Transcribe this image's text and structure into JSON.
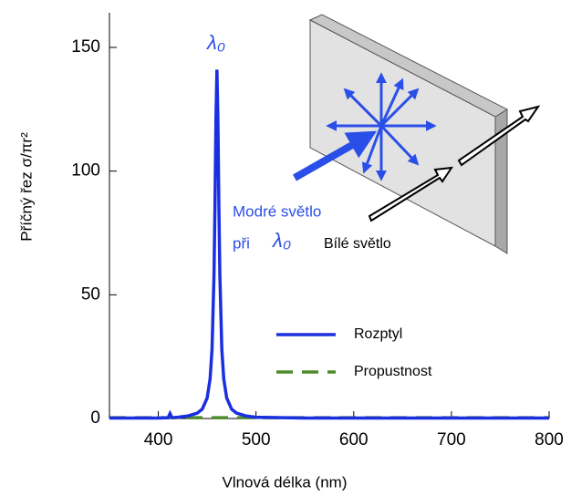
{
  "chart_data": {
    "type": "line",
    "x_label": "Vlnová délka (nm)",
    "y_label": "Příčný řez σ/πr²",
    "xlim": [
      350,
      800
    ],
    "xticks": [
      400,
      500,
      600,
      700,
      800
    ],
    "ylim": [
      0,
      164
    ],
    "yticks": [
      0,
      50,
      100,
      150
    ],
    "x": [
      350,
      380,
      400,
      410,
      412,
      414,
      420,
      430,
      440,
      445,
      450,
      453,
      455,
      457,
      458,
      459,
      460,
      461,
      462,
      463,
      465,
      467,
      470,
      475,
      480,
      490,
      500,
      550,
      600,
      650,
      700,
      750,
      800
    ],
    "series": [
      {
        "name": "Rozptyl",
        "color": "#1a2fe0",
        "dash": "solid",
        "values": [
          0.2,
          0.2,
          0.2,
          0.3,
          2,
          0.3,
          0.5,
          1,
          2.2,
          3.8,
          8.3,
          16,
          28,
          58,
          86,
          121,
          141,
          121,
          86,
          58,
          28,
          16,
          8.3,
          3.8,
          2.2,
          1,
          0.5,
          0.2,
          0.2,
          0.2,
          0.2,
          0.2,
          0.2
        ]
      },
      {
        "name": "Propustnost",
        "color": "#4e8a2a",
        "dash": "dashed",
        "values": [
          0.3,
          0.3,
          0.3,
          0.3,
          0.3,
          0.3,
          0.3,
          0.3,
          0.3,
          0.3,
          0.3,
          0.3,
          0.3,
          0.3,
          0.3,
          0.3,
          0.3,
          0.3,
          0.3,
          0.3,
          0.3,
          0.3,
          0.3,
          0.3,
          0.3,
          0.3,
          0.3,
          0.3,
          0.3,
          0.3,
          0.3,
          0.3,
          0.3
        ]
      }
    ],
    "annotations": {
      "peak": "λ₀",
      "blue_light": "Modré světlo",
      "at": "při",
      "lambda": "λ₀",
      "white_light": "Bílé světlo"
    }
  }
}
